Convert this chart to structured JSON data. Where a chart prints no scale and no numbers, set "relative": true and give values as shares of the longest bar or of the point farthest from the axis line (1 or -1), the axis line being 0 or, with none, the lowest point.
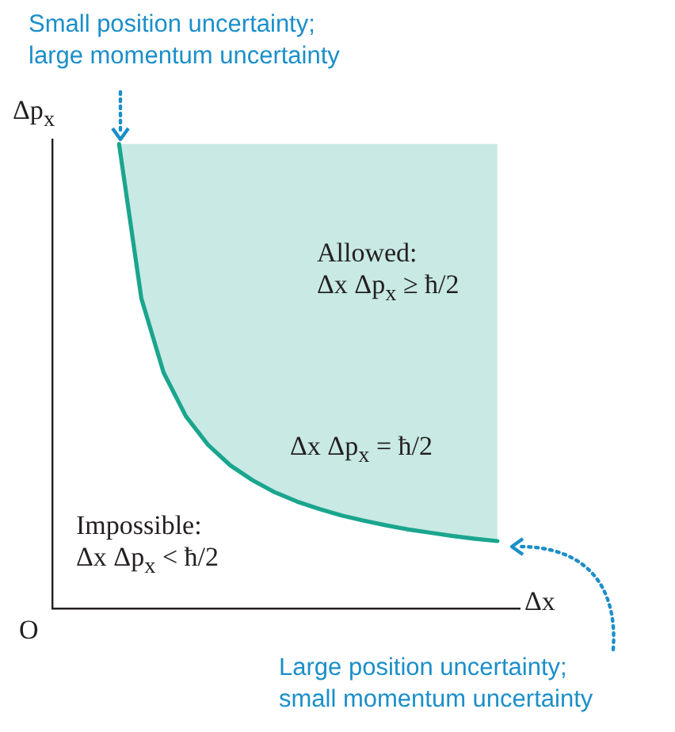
{
  "chart_data": {
    "type": "line",
    "relative": true,
    "xlabel": "Δx",
    "ylabel": "Δp$_{x}$",
    "categories": [
      null,
      null,
      null,
      null,
      null,
      null,
      null,
      null,
      null,
      null,
      null,
      null,
      null,
      null,
      null,
      null,
      null,
      null,
      null,
      null,
      null,
      null
    ],
    "series": [
      {
        "color": "#1aa58e",
        "values": [
          null,
          null,
          null,
          1,
          0.668,
          0.508,
          0.414,
          0.352,
          0.308,
          0.276,
          0.25,
          0.23,
          0.214,
          0.2,
          0.189,
          0.179,
          0.17,
          0.163,
          0.156,
          0.15,
          0.145,
          null
        ],
        "lower": [
          null,
          null,
          null,
          1,
          0.668,
          0.508,
          0.414,
          0.352,
          0.308,
          0.276,
          0.25,
          0.23,
          0.214,
          0.2,
          0.189,
          0.179,
          0.17,
          0.163,
          0.156,
          0.15,
          0.145,
          null
        ],
        "upper": [
          null,
          null,
          null,
          1,
          1,
          1,
          1,
          1,
          1,
          1,
          1,
          1,
          1,
          1,
          1,
          1,
          1,
          1,
          1,
          1,
          1,
          null
        ]
      }
    ],
    "annotations": [
      "Small position uncertainty;\nlarge momentum uncertainty",
      "Allowed:\nΔx Δp$_{x}$ ≥ ħ/2",
      "Δx Δp$_{x}$ = ħ/2",
      "Impossible:\nΔx Δp$_{x}$ < ħ/2",
      "Large position uncertainty;\nsmall momentum uncertainty",
      "O"
    ],
    "legend": false,
    "grid": false,
    "marker": "none",
    "line_style": "solid"
  }
}
